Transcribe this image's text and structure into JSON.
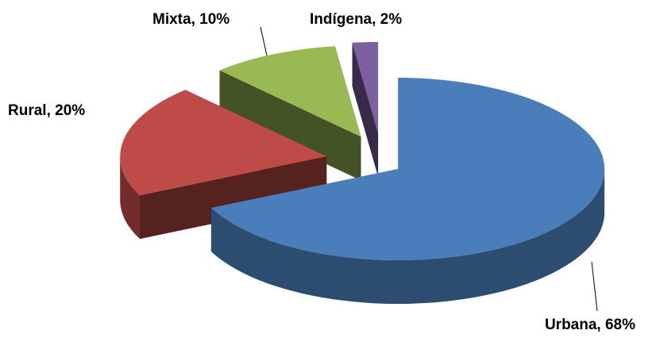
{
  "chart_data": {
    "type": "pie",
    "values": [
      68,
      20,
      10,
      2
    ],
    "value_labels": [
      "Urbana, 68%",
      "Rural, 20%",
      "Mixta, 10%",
      "Indígena, 2%"
    ],
    "colors": [
      "#4a7ebb",
      "#be4b48",
      "#98b954",
      "#7d60a0"
    ]
  }
}
